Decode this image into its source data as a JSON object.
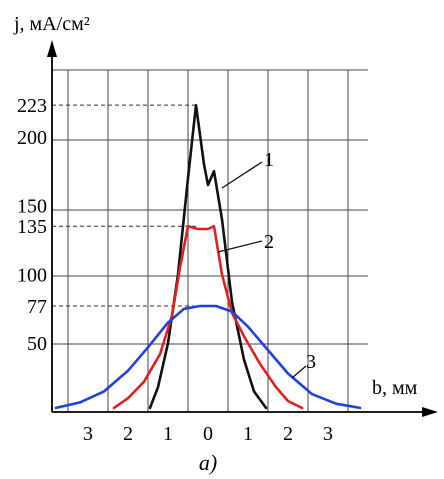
{
  "chart_data": {
    "type": "line",
    "ylabel": "j, мА/см²",
    "xlabel": "b, мм",
    "caption": "a)",
    "x_ticks": [
      {
        "pos": -3,
        "label": "3"
      },
      {
        "pos": -2,
        "label": "2"
      },
      {
        "pos": -1,
        "label": "1"
      },
      {
        "pos": 0,
        "label": "0"
      },
      {
        "pos": 1,
        "label": "1"
      },
      {
        "pos": 2,
        "label": "2"
      },
      {
        "pos": 3,
        "label": "3"
      }
    ],
    "y_ticks": [
      {
        "value": 223,
        "label": "223"
      },
      {
        "value": 200,
        "label": "200"
      },
      {
        "value": 150,
        "label": "150"
      },
      {
        "value": 135,
        "label": "135"
      },
      {
        "value": 100,
        "label": "100"
      },
      {
        "value": 77,
        "label": "77"
      },
      {
        "value": 50,
        "label": "50"
      }
    ],
    "reference_levels": [
      223,
      135,
      77
    ],
    "xlim": [
      -3.5,
      4.0
    ],
    "ylim": [
      0,
      250
    ],
    "grid": true,
    "series": [
      {
        "name": "1",
        "color": "#111111",
        "x": [
          -1.45,
          -1.25,
          -1.0,
          -0.75,
          -0.5,
          -0.3,
          -0.1,
          0.0,
          0.15,
          0.35,
          0.6,
          0.9,
          1.15,
          1.45
        ],
        "y": [
          3,
          18,
          50,
          100,
          170,
          223,
          180,
          165,
          175,
          140,
          80,
          38,
          15,
          3
        ]
      },
      {
        "name": "2",
        "color": "#e02020",
        "x": [
          -2.35,
          -2.0,
          -1.6,
          -1.2,
          -0.9,
          -0.7,
          -0.5,
          -0.25,
          0.0,
          0.15,
          0.35,
          0.6,
          0.9,
          1.3,
          1.7,
          2.0,
          2.35
        ],
        "y": [
          3,
          10,
          22,
          42,
          70,
          105,
          135,
          133,
          133,
          135,
          100,
          72,
          55,
          35,
          18,
          8,
          3
        ]
      },
      {
        "name": "3",
        "color": "#2040e0",
        "x": [
          -3.8,
          -3.2,
          -2.6,
          -2.0,
          -1.5,
          -1.0,
          -0.6,
          -0.2,
          0.2,
          0.6,
          1.0,
          1.5,
          2.0,
          2.6,
          3.2,
          3.8
        ],
        "y": [
          3,
          7,
          15,
          30,
          47,
          65,
          75,
          77,
          77,
          73,
          62,
          45,
          28,
          13,
          6,
          3
        ]
      }
    ]
  }
}
